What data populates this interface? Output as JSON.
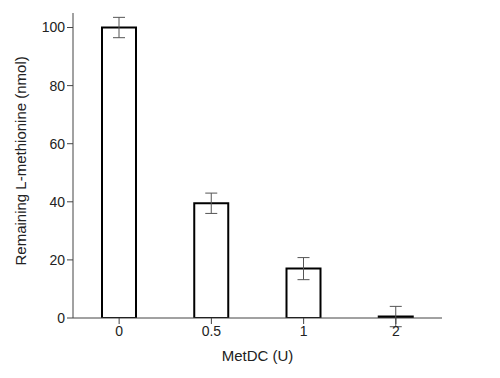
{
  "chart_data": {
    "type": "bar",
    "categories": [
      "0",
      "0.5",
      "1",
      "2"
    ],
    "values": [
      100,
      39.5,
      17,
      0.5
    ],
    "errors": [
      3.5,
      3.5,
      3.8,
      3.5
    ],
    "color": "#ffffff",
    "xlabel": "MetDC (U)",
    "ylabel": "Remaining L-methionine (nmol)",
    "ylim": [
      0,
      105
    ],
    "yticks": [
      0,
      20,
      40,
      60,
      80,
      100
    ],
    "grid": false
  }
}
